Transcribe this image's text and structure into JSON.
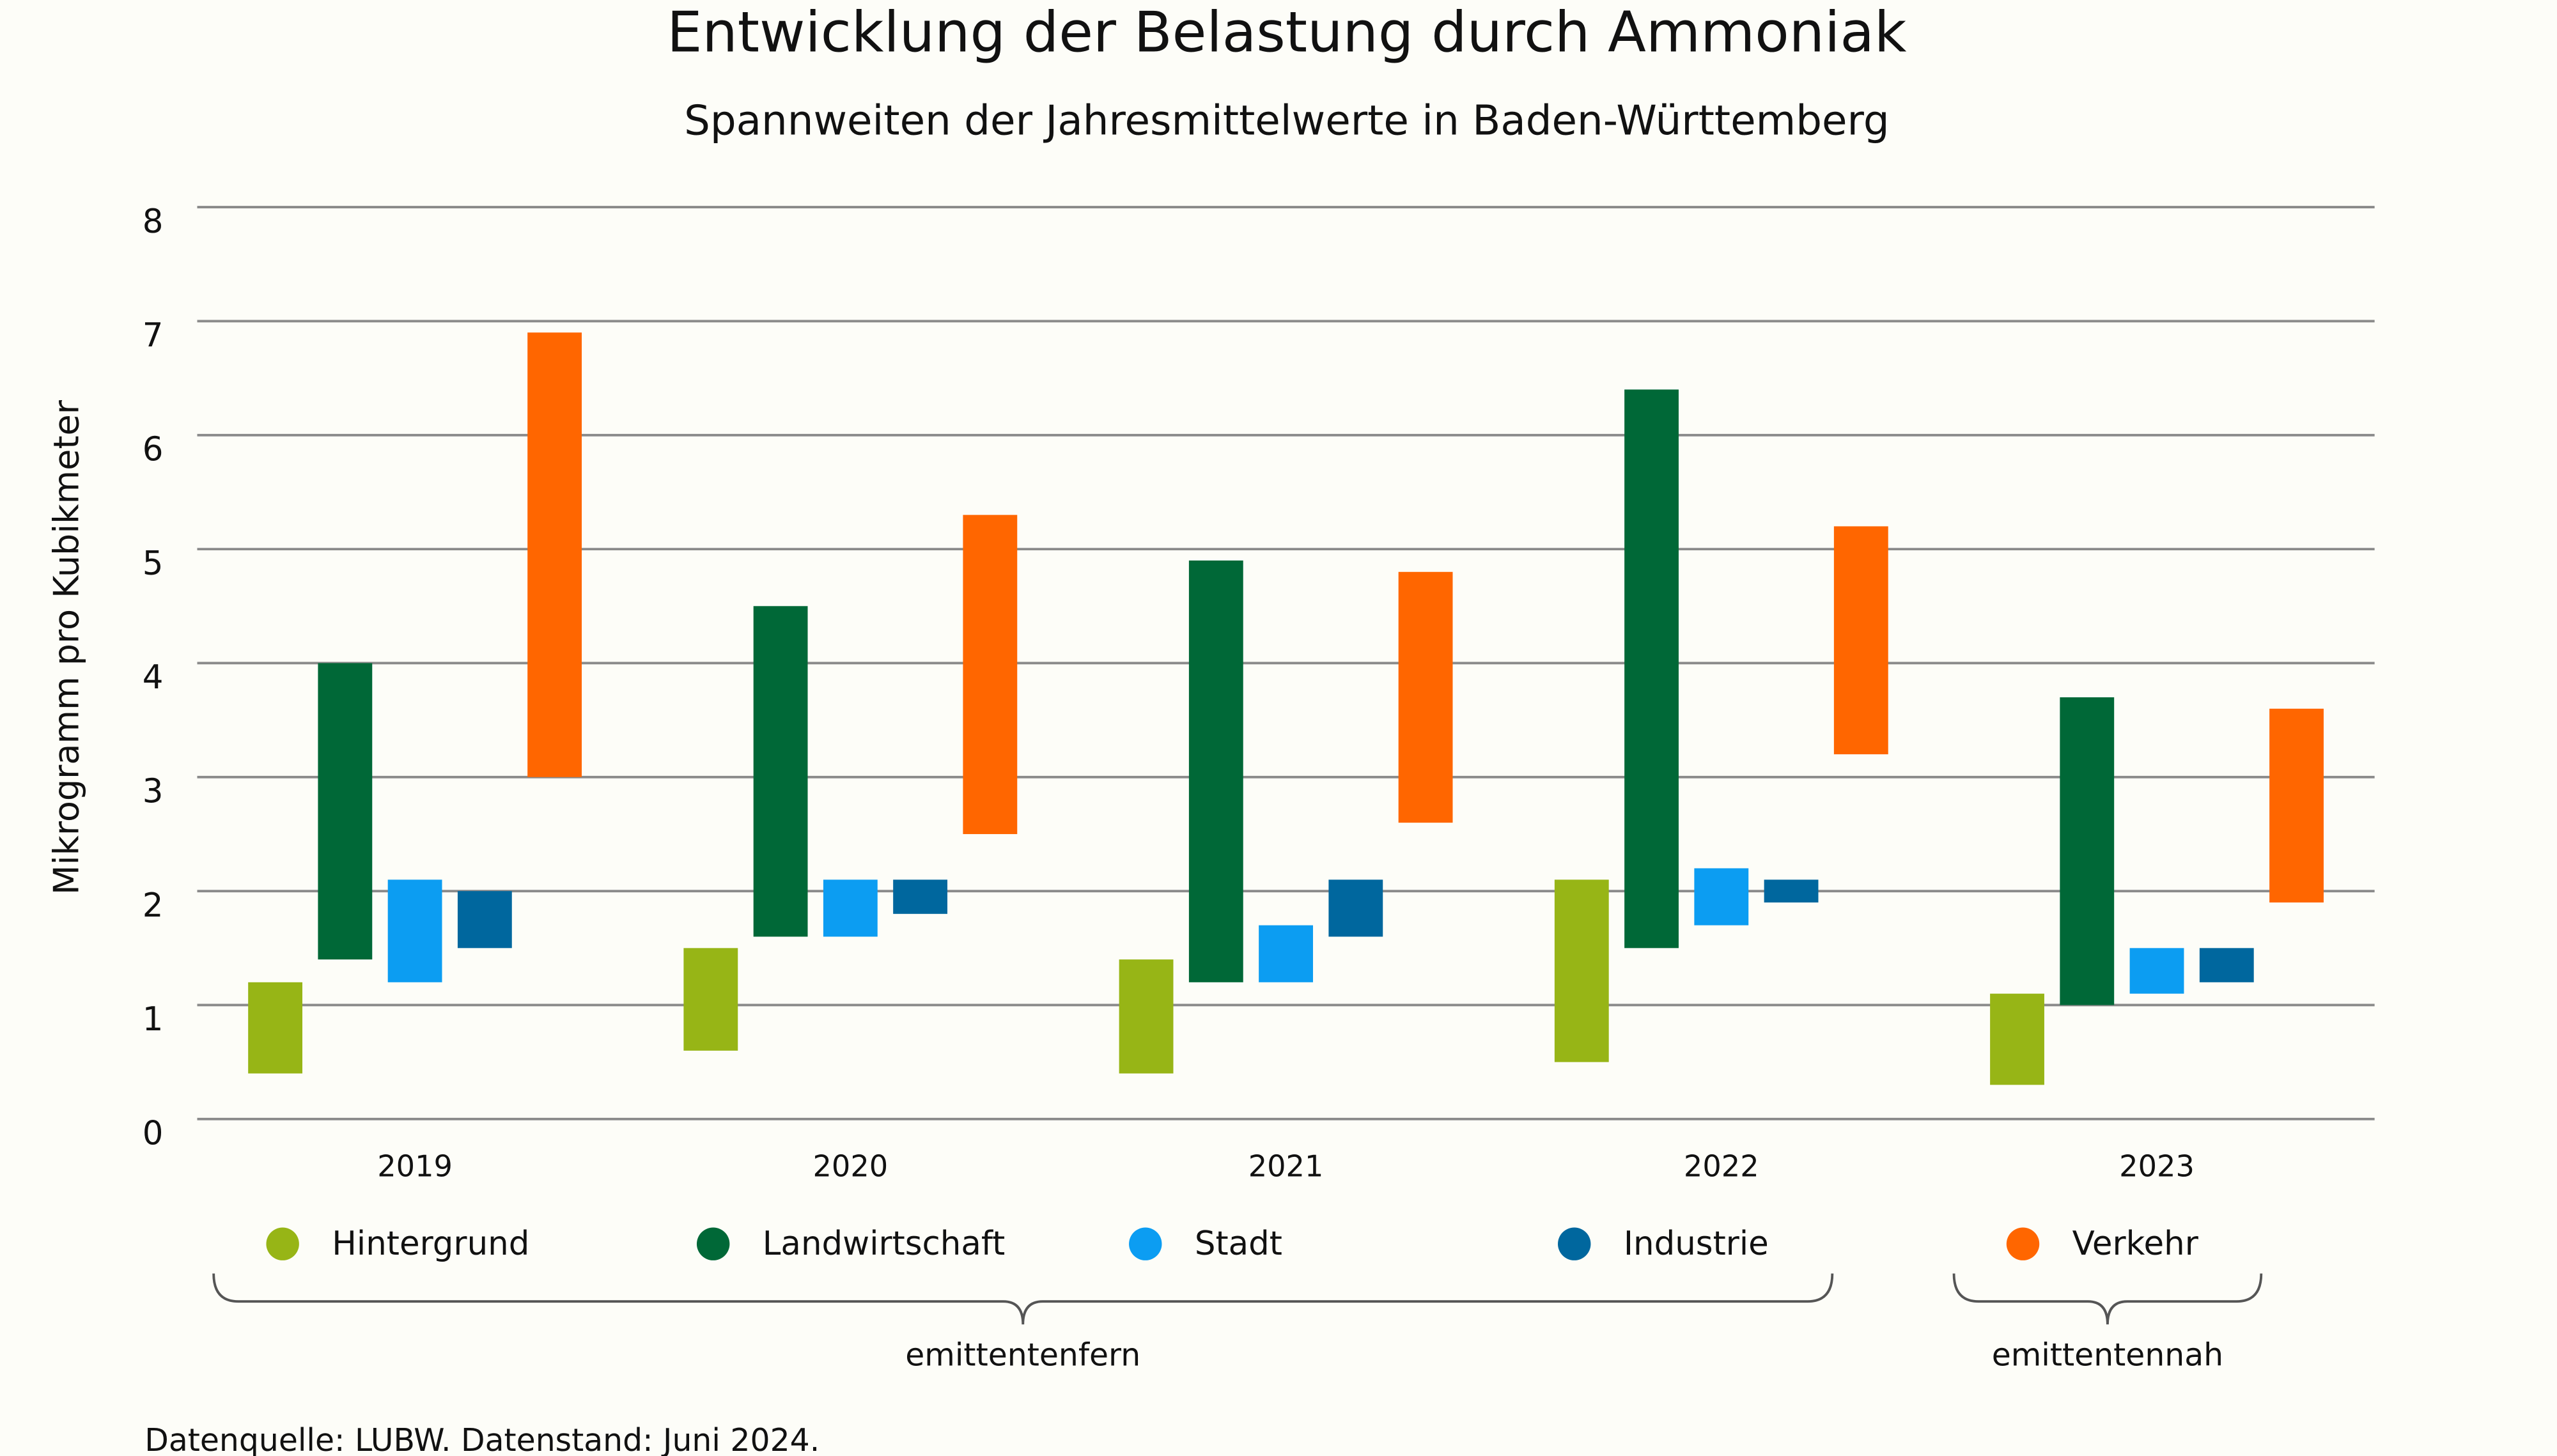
{
  "chart_data": {
    "type": "floating-bar",
    "title": "Entwicklung der Belastung durch Ammoniak",
    "subtitle": "Spannweiten der Jahresmittelwerte in Baden-Württemberg",
    "y_label": "Mikrogramm pro Kubikmeter",
    "source": "Datenquelle: LUBW. Datenstand: Juni 2024.",
    "categories": [
      "2019",
      "2020",
      "2021",
      "2022",
      "2023"
    ],
    "series": [
      {
        "name": "Hintergrund",
        "color": "#97b516",
        "values": [
          [
            0.4,
            1.2
          ],
          [
            0.6,
            1.5
          ],
          [
            0.4,
            1.4
          ],
          [
            0.5,
            2.1
          ],
          [
            0.3,
            1.1
          ]
        ]
      },
      {
        "name": "Landwirtschaft",
        "color": "#006837",
        "values": [
          [
            1.4,
            4.0
          ],
          [
            1.6,
            4.5
          ],
          [
            1.2,
            4.9
          ],
          [
            1.5,
            6.4
          ],
          [
            1.0,
            3.7
          ]
        ]
      },
      {
        "name": "Stadt",
        "color": "#0c9df2",
        "values": [
          [
            1.2,
            2.1
          ],
          [
            1.6,
            2.1
          ],
          [
            1.2,
            1.7
          ],
          [
            1.7,
            2.2
          ],
          [
            1.1,
            1.5
          ]
        ]
      },
      {
        "name": "Industrie",
        "color": "#00679e",
        "values": [
          [
            1.5,
            2.0
          ],
          [
            1.8,
            2.1
          ],
          [
            1.6,
            2.1
          ],
          [
            1.9,
            2.1
          ],
          [
            1.2,
            1.5
          ]
        ]
      },
      {
        "name": "Verkehr",
        "color": "#ff6600",
        "values": [
          [
            3.0,
            6.9
          ],
          [
            2.5,
            5.3
          ],
          [
            2.6,
            4.8
          ],
          [
            3.2,
            5.2
          ],
          [
            1.9,
            3.6
          ]
        ]
      }
    ],
    "groups": [
      {
        "label": "emittentenfern",
        "series": [
          0,
          1,
          2,
          3
        ]
      },
      {
        "label": "emittentennah",
        "series": [
          4
        ]
      }
    ],
    "ylim": [
      0,
      8
    ],
    "yticks": [
      0,
      1,
      2,
      3,
      4,
      5,
      6,
      7,
      8
    ],
    "grid": true
  }
}
